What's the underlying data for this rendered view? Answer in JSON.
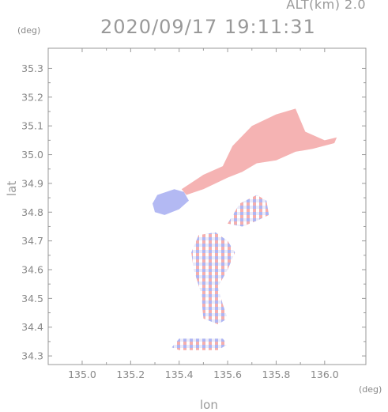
{
  "header": {
    "altitude_label": "ALT(km) 2.0",
    "datetime": "2020/09/17 19:11:31"
  },
  "axes": {
    "x_unit": "(deg)",
    "y_unit": "(deg)",
    "x_label": "lon",
    "y_label": "lat"
  },
  "chart_data": {
    "type": "heatmap",
    "title": "2020/09/17 19:11:31",
    "subtitle": "ALT(km) 2.0",
    "xlabel": "lon",
    "ylabel": "lat",
    "x_unit": "(deg)",
    "y_unit": "(deg)",
    "xlim": [
      134.86,
      136.17
    ],
    "ylim": [
      34.27,
      35.37
    ],
    "x_ticks": [
      135.0,
      135.2,
      135.4,
      135.6,
      135.8,
      136.0
    ],
    "x_tick_labels": [
      "135.0",
      "135.2",
      "135.4",
      "135.6",
      "135.8",
      "136.0"
    ],
    "y_ticks": [
      34.3,
      34.4,
      34.5,
      34.6,
      34.7,
      34.8,
      34.9,
      35.0,
      35.1,
      35.2,
      35.3
    ],
    "y_tick_labels": [
      "34.3",
      "34.4",
      "34.5",
      "34.6",
      "34.7",
      "34.8",
      "34.9",
      "35.0",
      "35.1",
      "35.2",
      "35.3"
    ],
    "grid": false,
    "colors": {
      "positive": "#f2a0a0",
      "negative": "#a0a8f0",
      "axis": "#999999"
    },
    "regions": [
      {
        "name": "pink-band",
        "sign": "positive",
        "polygon": [
          [
            135.41,
            34.88
          ],
          [
            135.5,
            34.93
          ],
          [
            135.58,
            34.96
          ],
          [
            135.62,
            35.03
          ],
          [
            135.7,
            35.1
          ],
          [
            135.8,
            35.14
          ],
          [
            135.88,
            35.16
          ],
          [
            135.92,
            35.08
          ],
          [
            136.0,
            35.05
          ],
          [
            136.05,
            35.06
          ],
          [
            136.04,
            35.04
          ],
          [
            135.95,
            35.02
          ],
          [
            135.88,
            35.01
          ],
          [
            135.8,
            34.98
          ],
          [
            135.72,
            34.97
          ],
          [
            135.66,
            34.94
          ],
          [
            135.6,
            34.92
          ],
          [
            135.5,
            34.88
          ],
          [
            135.43,
            34.86
          ]
        ]
      },
      {
        "name": "blue-patch",
        "sign": "negative",
        "polygon": [
          [
            135.29,
            34.83
          ],
          [
            135.31,
            34.86
          ],
          [
            135.38,
            34.88
          ],
          [
            135.42,
            34.87
          ],
          [
            135.44,
            34.84
          ],
          [
            135.4,
            34.81
          ],
          [
            135.34,
            34.79
          ],
          [
            135.3,
            34.8
          ]
        ]
      },
      {
        "name": "south-body",
        "sign": "mixed",
        "polygon": [
          [
            135.48,
            34.72
          ],
          [
            135.55,
            34.73
          ],
          [
            135.6,
            34.7
          ],
          [
            135.63,
            34.66
          ],
          [
            135.6,
            34.6
          ],
          [
            135.56,
            34.54
          ],
          [
            135.58,
            34.48
          ],
          [
            135.6,
            34.43
          ],
          [
            135.56,
            34.41
          ],
          [
            135.5,
            34.43
          ],
          [
            135.49,
            34.52
          ],
          [
            135.46,
            34.6
          ],
          [
            135.45,
            34.66
          ]
        ]
      },
      {
        "name": "east-cluster",
        "sign": "mixed",
        "polygon": [
          [
            135.6,
            34.76
          ],
          [
            135.65,
            34.83
          ],
          [
            135.72,
            34.86
          ],
          [
            135.76,
            34.84
          ],
          [
            135.77,
            34.79
          ],
          [
            135.72,
            34.77
          ],
          [
            135.66,
            34.75
          ]
        ]
      },
      {
        "name": "south-strip",
        "sign": "mixed",
        "polygon": [
          [
            135.37,
            34.33
          ],
          [
            135.4,
            34.36
          ],
          [
            135.58,
            34.36
          ],
          [
            135.6,
            34.34
          ],
          [
            135.56,
            34.32
          ],
          [
            135.4,
            34.32
          ]
        ]
      }
    ]
  }
}
